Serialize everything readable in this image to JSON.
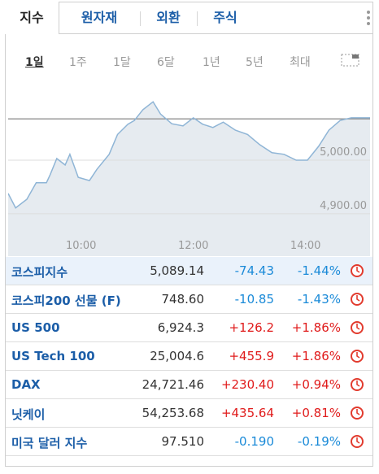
{
  "tabs": [
    "지수",
    "원자재",
    "외환",
    "주식"
  ],
  "periods": [
    "1일",
    "1주",
    "1달",
    "6달",
    "1년",
    "5년",
    "최대"
  ],
  "chart": {
    "type": "line",
    "color": "#8fb5d6",
    "fill": "#e6ebf0",
    "x": [
      522,
      530,
      542,
      552,
      563,
      567,
      574,
      583,
      588,
      597,
      609,
      617,
      630,
      639,
      650,
      657,
      666,
      677,
      685,
      697,
      709,
      720,
      730,
      741,
      752,
      765,
      778,
      791,
      804,
      817,
      830,
      842,
      854,
      865,
      877,
      889,
      909
    ],
    "values": [
      4938,
      4911,
      4927,
      4958,
      4958,
      4973,
      5003,
      4991,
      5011,
      4968,
      4962,
      4983,
      5011,
      5048,
      5067,
      5074,
      5094,
      5109,
      5086,
      5068,
      5064,
      5079,
      5067,
      5061,
      5071,
      5056,
      5048,
      5029,
      5014,
      5011,
      5000,
      5000,
      5026,
      5056,
      5074,
      5079,
      5079
    ],
    "xlim": [
      522,
      909
    ],
    "ylim": [
      4821,
      5132
    ],
    "xticks": [
      {
        "value": 600,
        "label": "10:00"
      },
      {
        "value": 720,
        "label": "12:00"
      },
      {
        "value": 840,
        "label": "14:00"
      }
    ],
    "yticks": [
      {
        "value": 4900,
        "label": "4,900.00"
      },
      {
        "value": 5000,
        "label": "5,000.00"
      }
    ],
    "reference": 5077
  },
  "rows": [
    [
      "코스피지수",
      "5,089.14",
      "-74.43",
      "-1.44%"
    ],
    [
      "코스피200 선물 (F)",
      "748.60",
      "-10.85",
      "-1.43%"
    ],
    [
      "US 500",
      "6,924.3",
      "+126.2",
      "+1.86%"
    ],
    [
      "US Tech 100",
      "25,004.6",
      "+455.9",
      "+1.86%"
    ],
    [
      "DAX",
      "24,721.46",
      "+230.40",
      "+0.94%"
    ],
    [
      "닛케이",
      "54,253.68",
      "+435.64",
      "+0.81%"
    ],
    [
      "미국 달러 지수",
      "97.510",
      "-0.190",
      "-0.19%"
    ]
  ]
}
